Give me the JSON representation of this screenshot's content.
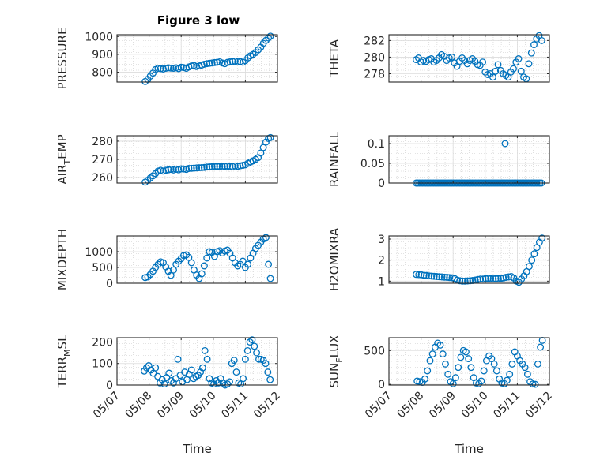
{
  "figure": {
    "title": "Figure 3 low",
    "xlabel": "Time",
    "x_ticks": [
      "05/07",
      "05/08",
      "05/09",
      "05/10",
      "05/11",
      "05/12"
    ],
    "marker_color": "#0072BD"
  },
  "chart_data": [
    {
      "type": "scatter",
      "ylabel": "PRESSURE",
      "ylim": [
        745,
        1010
      ],
      "yticks": [
        800,
        900,
        1000
      ],
      "xlim": [
        0,
        5
      ],
      "series": [
        {
          "x": [
            0.88,
            0.96,
            1.04,
            1.12,
            1.2,
            1.28,
            1.36,
            1.44,
            1.52,
            1.6,
            1.68,
            1.76,
            1.84,
            1.92,
            2.0,
            2.08,
            2.16,
            2.24,
            2.32,
            2.4,
            2.48,
            2.56,
            2.64,
            2.72,
            2.8,
            2.88,
            2.96,
            3.04,
            3.12,
            3.2,
            3.28,
            3.36,
            3.44,
            3.52,
            3.6,
            3.68,
            3.76,
            3.84,
            3.92,
            4.0,
            4.08,
            4.16,
            4.24,
            4.32,
            4.4,
            4.48,
            4.56,
            4.64,
            4.72,
            4.78
          ],
          "y": [
            748,
            760,
            778,
            795,
            815,
            822,
            820,
            818,
            822,
            825,
            823,
            822,
            825,
            820,
            828,
            826,
            822,
            830,
            835,
            838,
            832,
            835,
            840,
            845,
            848,
            850,
            852,
            854,
            856,
            858,
            852,
            848,
            855,
            858,
            860,
            862,
            858,
            860,
            856,
            865,
            880,
            892,
            900,
            910,
            925,
            940,
            962,
            978,
            992,
            1002
          ]
        }
      ]
    },
    {
      "type": "scatter",
      "ylabel": "THETA",
      "ylim": [
        277,
        282.7
      ],
      "yticks": [
        278,
        280,
        282
      ],
      "xlim": [
        0,
        5
      ],
      "series": [
        {
          "x": [
            0.85,
            0.92,
            1.0,
            1.08,
            1.16,
            1.24,
            1.32,
            1.4,
            1.48,
            1.56,
            1.64,
            1.72,
            1.8,
            1.88,
            1.96,
            2.04,
            2.12,
            2.2,
            2.28,
            2.36,
            2.44,
            2.52,
            2.6,
            2.68,
            2.76,
            2.84,
            2.92,
            3.0,
            3.08,
            3.16,
            3.24,
            3.32,
            3.4,
            3.48,
            3.56,
            3.64,
            3.72,
            3.8,
            3.88,
            3.96,
            4.04,
            4.12,
            4.2,
            4.28,
            4.36,
            4.44,
            4.52,
            4.6,
            4.68,
            4.76
          ],
          "y": [
            279.7,
            279.9,
            279.4,
            279.6,
            279.5,
            279.7,
            279.8,
            279.4,
            279.6,
            279.9,
            280.3,
            280.1,
            279.6,
            279.9,
            280.0,
            279.3,
            278.9,
            279.5,
            279.9,
            279.6,
            279.2,
            279.6,
            279.8,
            279.5,
            279.1,
            279.0,
            279.4,
            278.2,
            277.9,
            278.0,
            277.6,
            278.3,
            279.1,
            278.4,
            278.0,
            277.8,
            277.6,
            278.2,
            278.6,
            279.4,
            279.8,
            278.3,
            277.6,
            277.4,
            279.2,
            280.5,
            281.5,
            282.2,
            282.6,
            282.0
          ]
        }
      ]
    },
    {
      "type": "scatter",
      "ylabel": "AIR_TEMP",
      "ylim": [
        257,
        283
      ],
      "yticks": [
        260,
        270,
        280
      ],
      "xlim": [
        0,
        5
      ],
      "series": [
        {
          "x": [
            0.88,
            0.96,
            1.04,
            1.12,
            1.2,
            1.28,
            1.36,
            1.44,
            1.52,
            1.6,
            1.68,
            1.76,
            1.84,
            1.92,
            2.0,
            2.08,
            2.16,
            2.24,
            2.32,
            2.4,
            2.48,
            2.56,
            2.64,
            2.72,
            2.8,
            2.88,
            2.96,
            3.04,
            3.12,
            3.2,
            3.28,
            3.36,
            3.44,
            3.52,
            3.6,
            3.68,
            3.76,
            3.84,
            3.92,
            4.0,
            4.08,
            4.16,
            4.24,
            4.32,
            4.4,
            4.48,
            4.56,
            4.64,
            4.72,
            4.78
          ],
          "y": [
            257.5,
            258.5,
            259.8,
            261.0,
            262.2,
            263.6,
            264.0,
            263.6,
            264.0,
            264.3,
            264.5,
            264.2,
            264.6,
            264.3,
            264.8,
            264.7,
            264.5,
            265.0,
            265.1,
            265.2,
            265.3,
            265.4,
            265.5,
            265.6,
            265.8,
            265.9,
            266.0,
            266.1,
            266.2,
            266.1,
            266.0,
            266.2,
            266.3,
            266.1,
            266.0,
            266.4,
            266.2,
            266.5,
            266.7,
            267.0,
            267.8,
            268.6,
            269.2,
            270.0,
            271.0,
            273.5,
            276.5,
            279.5,
            281.5,
            282.0
          ]
        }
      ]
    },
    {
      "type": "scatter",
      "ylabel": "RAINFALL",
      "ylim": [
        0,
        0.12
      ],
      "yticks": [
        0,
        0.05,
        0.1
      ],
      "ytick_labels": [
        "0",
        "0.05",
        "0.1"
      ],
      "xlim": [
        0,
        5
      ],
      "series": [
        {
          "x": [
            0.85,
            0.9,
            0.95,
            1.0,
            1.05,
            1.1,
            1.15,
            1.2,
            1.25,
            1.3,
            1.35,
            1.4,
            1.45,
            1.5,
            1.55,
            1.6,
            1.65,
            1.7,
            1.75,
            1.8,
            1.85,
            1.9,
            1.95,
            2.0,
            2.05,
            2.1,
            2.15,
            2.2,
            2.25,
            2.3,
            2.35,
            2.4,
            2.45,
            2.5,
            2.55,
            2.6,
            2.65,
            2.7,
            2.75,
            2.8,
            2.85,
            2.9,
            2.95,
            3.0,
            3.05,
            3.1,
            3.15,
            3.2,
            3.25,
            3.3,
            3.35,
            3.4,
            3.45,
            3.5,
            3.55,
            3.6,
            3.65,
            3.7,
            3.75,
            3.8,
            3.85,
            3.9,
            3.95,
            4.0,
            4.05,
            4.1,
            4.15,
            4.2,
            4.25,
            4.3,
            4.35,
            4.4,
            4.45,
            4.5,
            4.55,
            4.6,
            4.65,
            4.7,
            4.75,
            3.62
          ],
          "y": [
            0,
            0,
            0,
            0,
            0,
            0,
            0,
            0,
            0,
            0,
            0,
            0,
            0,
            0,
            0,
            0,
            0,
            0,
            0,
            0,
            0,
            0,
            0,
            0,
            0,
            0,
            0,
            0,
            0,
            0,
            0,
            0,
            0,
            0,
            0,
            0,
            0,
            0,
            0,
            0,
            0,
            0,
            0,
            0,
            0,
            0,
            0,
            0,
            0,
            0,
            0,
            0,
            0,
            0,
            0,
            0,
            0,
            0,
            0,
            0,
            0,
            0,
            0,
            0,
            0,
            0,
            0,
            0,
            0,
            0,
            0,
            0,
            0,
            0,
            0,
            0,
            0,
            0,
            0,
            0.1
          ]
        }
      ]
    },
    {
      "type": "scatter",
      "ylabel": "MIXDEPTH",
      "ylim": [
        0,
        1500
      ],
      "yticks": [
        0,
        500,
        1000
      ],
      "xlim": [
        0,
        5
      ],
      "series": [
        {
          "x": [
            0.88,
            0.96,
            1.04,
            1.12,
            1.2,
            1.28,
            1.36,
            1.44,
            1.52,
            1.6,
            1.68,
            1.76,
            1.84,
            1.92,
            2.0,
            2.08,
            2.16,
            2.24,
            2.32,
            2.4,
            2.48,
            2.56,
            2.64,
            2.72,
            2.8,
            2.88,
            2.96,
            3.04,
            3.12,
            3.2,
            3.28,
            3.36,
            3.44,
            3.52,
            3.6,
            3.68,
            3.76,
            3.84,
            3.92,
            4.0,
            4.08,
            4.16,
            4.24,
            4.32,
            4.4,
            4.48,
            4.56,
            4.64,
            4.72,
            4.78
          ],
          "y": [
            180,
            200,
            280,
            380,
            500,
            600,
            680,
            650,
            520,
            380,
            250,
            420,
            600,
            700,
            780,
            880,
            900,
            820,
            650,
            420,
            260,
            150,
            300,
            550,
            800,
            1000,
            980,
            850,
            1000,
            1030,
            960,
            1020,
            1050,
            950,
            800,
            650,
            550,
            600,
            700,
            500,
            600,
            800,
            950,
            1100,
            1200,
            1300,
            1400,
            1450,
            600,
            150
          ]
        }
      ]
    },
    {
      "type": "scatter",
      "ylabel": "H2OMIXRA",
      "ylim": [
        0.9,
        3.15
      ],
      "yticks": [
        1,
        2,
        3
      ],
      "xlim": [
        0,
        5
      ],
      "series": [
        {
          "x": [
            0.85,
            0.93,
            1.01,
            1.09,
            1.17,
            1.25,
            1.33,
            1.41,
            1.49,
            1.57,
            1.65,
            1.73,
            1.81,
            1.89,
            1.97,
            2.05,
            2.13,
            2.21,
            2.29,
            2.37,
            2.45,
            2.53,
            2.61,
            2.69,
            2.77,
            2.85,
            2.93,
            3.01,
            3.09,
            3.17,
            3.25,
            3.33,
            3.41,
            3.49,
            3.57,
            3.65,
            3.73,
            3.81,
            3.89,
            3.97,
            4.05,
            4.13,
            4.21,
            4.29,
            4.37,
            4.45,
            4.53,
            4.61,
            4.69,
            4.77
          ],
          "y": [
            1.32,
            1.31,
            1.3,
            1.28,
            1.27,
            1.25,
            1.24,
            1.23,
            1.22,
            1.21,
            1.2,
            1.19,
            1.18,
            1.17,
            1.16,
            1.12,
            1.05,
            1.02,
            1.0,
            1.0,
            1.01,
            1.02,
            1.03,
            1.05,
            1.08,
            1.1,
            1.1,
            1.12,
            1.13,
            1.12,
            1.11,
            1.12,
            1.12,
            1.13,
            1.15,
            1.18,
            1.2,
            1.22,
            1.15,
            1.0,
            0.95,
            1.1,
            1.25,
            1.45,
            1.7,
            2.0,
            2.3,
            2.6,
            2.85,
            3.05
          ]
        }
      ]
    },
    {
      "type": "scatter",
      "ylabel": "TERR_MSL",
      "ylim": [
        0,
        220
      ],
      "yticks": [
        0,
        100,
        200
      ],
      "xlim": [
        0,
        5
      ],
      "series": [
        {
          "x": [
            0.85,
            0.92,
            0.99,
            1.06,
            1.13,
            1.2,
            1.27,
            1.34,
            1.41,
            1.48,
            1.55,
            1.62,
            1.69,
            1.76,
            1.83,
            1.9,
            1.97,
            2.04,
            2.11,
            2.18,
            2.25,
            2.32,
            2.39,
            2.46,
            2.53,
            2.6,
            2.67,
            2.74,
            2.81,
            2.88,
            2.95,
            3.02,
            3.09,
            3.16,
            3.23,
            3.3,
            3.37,
            3.44,
            3.51,
            3.58,
            3.65,
            3.72,
            3.79,
            3.86,
            3.93,
            4.0,
            4.07,
            4.14,
            4.21,
            4.28,
            4.35,
            4.42,
            4.49,
            4.56,
            4.63,
            4.7,
            4.77
          ],
          "y": [
            65,
            80,
            90,
            70,
            55,
            80,
            40,
            10,
            25,
            5,
            35,
            55,
            20,
            10,
            30,
            120,
            45,
            15,
            60,
            25,
            50,
            70,
            30,
            40,
            45,
            60,
            80,
            160,
            120,
            30,
            10,
            5,
            20,
            10,
            30,
            10,
            0,
            5,
            15,
            100,
            115,
            60,
            10,
            5,
            30,
            120,
            160,
            200,
            210,
            180,
            150,
            120,
            120,
            115,
            100,
            60,
            25
          ]
        }
      ]
    },
    {
      "type": "scatter",
      "ylabel": "SUN_FLUX",
      "ylim": [
        -10,
        690
      ],
      "yticks": [
        0,
        500
      ],
      "xlim": [
        0,
        5
      ],
      "series": [
        {
          "x": [
            0.88,
            0.96,
            1.04,
            1.12,
            1.2,
            1.28,
            1.36,
            1.44,
            1.52,
            1.6,
            1.68,
            1.76,
            1.84,
            1.92,
            2.0,
            2.08,
            2.16,
            2.24,
            2.32,
            2.4,
            2.48,
            2.56,
            2.64,
            2.72,
            2.8,
            2.88,
            2.96,
            3.04,
            3.12,
            3.2,
            3.28,
            3.36,
            3.44,
            3.52,
            3.6,
            3.68,
            3.76,
            3.84,
            3.92,
            4.0,
            4.08,
            4.16,
            4.24,
            4.32,
            4.4,
            4.48,
            4.56,
            4.64,
            4.72,
            4.78
          ],
          "y": [
            50,
            40,
            30,
            80,
            200,
            350,
            450,
            550,
            610,
            580,
            450,
            300,
            150,
            40,
            10,
            100,
            250,
            400,
            500,
            480,
            380,
            250,
            100,
            20,
            10,
            50,
            200,
            350,
            420,
            380,
            300,
            200,
            80,
            20,
            10,
            60,
            150,
            300,
            480,
            420,
            350,
            300,
            250,
            150,
            40,
            5,
            0,
            300,
            550,
            650
          ]
        }
      ]
    }
  ]
}
